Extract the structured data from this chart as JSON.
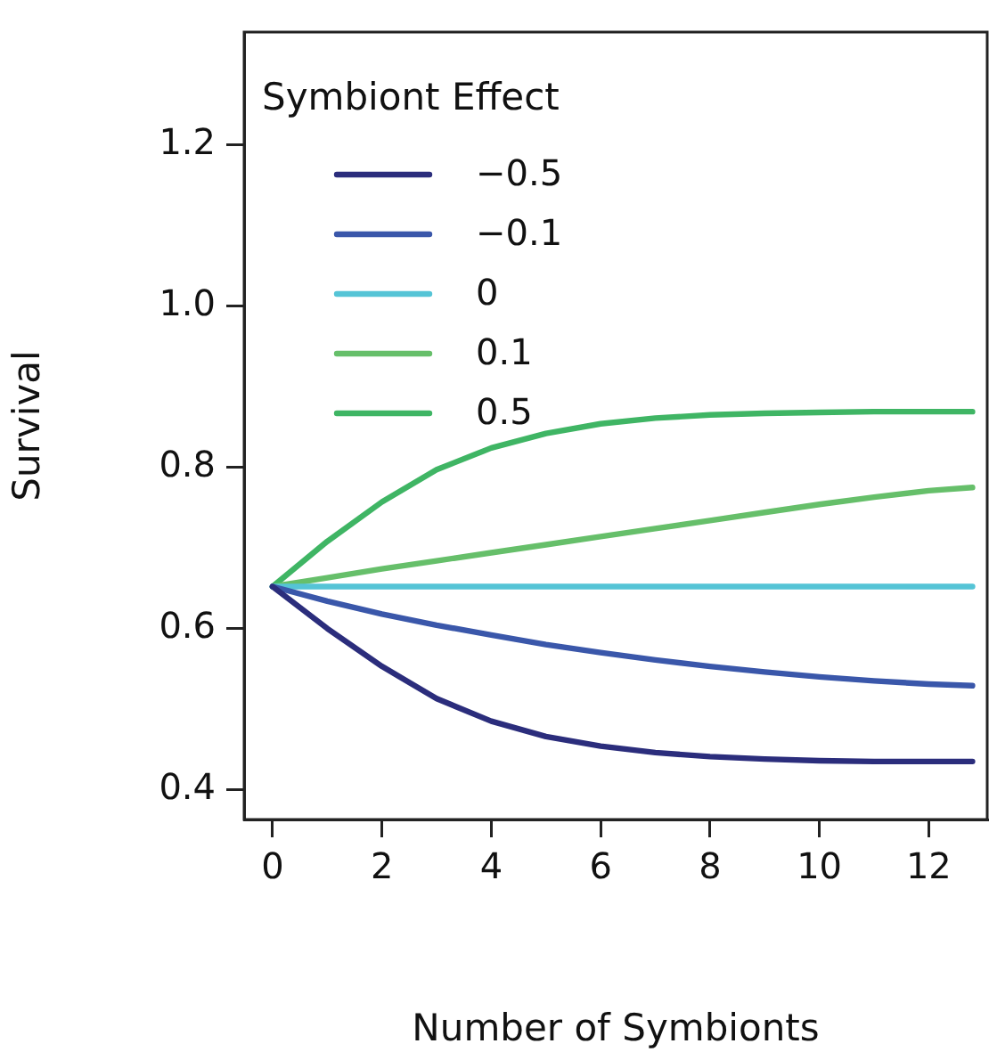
{
  "chart_data": {
    "type": "line",
    "xlabel": "Number of Symbionts",
    "ylabel": "Survival",
    "legend_title": "Symbiont Effect",
    "x": [
      0,
      1,
      2,
      3,
      4,
      5,
      6,
      7,
      8,
      9,
      10,
      11,
      12,
      12.8
    ],
    "series": [
      {
        "name": "−0.5",
        "color": "#2b2d7c",
        "values": [
          0.652,
          0.6,
          0.553,
          0.513,
          0.485,
          0.466,
          0.454,
          0.446,
          0.441,
          0.438,
          0.436,
          0.435,
          0.435,
          0.435
        ]
      },
      {
        "name": "−0.1",
        "color": "#3a57aa",
        "values": [
          0.652,
          0.634,
          0.618,
          0.604,
          0.592,
          0.58,
          0.57,
          0.561,
          0.553,
          0.546,
          0.54,
          0.535,
          0.531,
          0.529
        ]
      },
      {
        "name": "0",
        "color": "#55c4d6",
        "values": [
          0.652,
          0.652,
          0.652,
          0.652,
          0.652,
          0.652,
          0.652,
          0.652,
          0.652,
          0.652,
          0.652,
          0.652,
          0.652,
          0.652
        ]
      },
      {
        "name": "0.1",
        "color": "#66bf6a",
        "values": [
          0.652,
          0.663,
          0.674,
          0.684,
          0.694,
          0.704,
          0.714,
          0.724,
          0.734,
          0.744,
          0.754,
          0.763,
          0.771,
          0.775
        ]
      },
      {
        "name": "0.5",
        "color": "#3fb564",
        "values": [
          0.652,
          0.708,
          0.757,
          0.797,
          0.824,
          0.842,
          0.854,
          0.861,
          0.865,
          0.867,
          0.868,
          0.869,
          0.869,
          0.869
        ]
      }
    ],
    "xlim": [
      -0.52,
      13.07
    ],
    "xticks": [
      0,
      2,
      4,
      6,
      8,
      10,
      12
    ],
    "ylim": [
      0.363,
      1.34
    ],
    "yticks": [
      {
        "value": 0.4,
        "label": "0.4"
      },
      {
        "value": 0.6,
        "label": "0.6"
      },
      {
        "value": 0.8,
        "label": "0.8"
      },
      {
        "value": 1.0,
        "label": "1.0"
      },
      {
        "value": 1.2,
        "label": "1.2"
      }
    ],
    "grid": false,
    "legend": "top left",
    "marker": "none",
    "line_style": "solid"
  }
}
